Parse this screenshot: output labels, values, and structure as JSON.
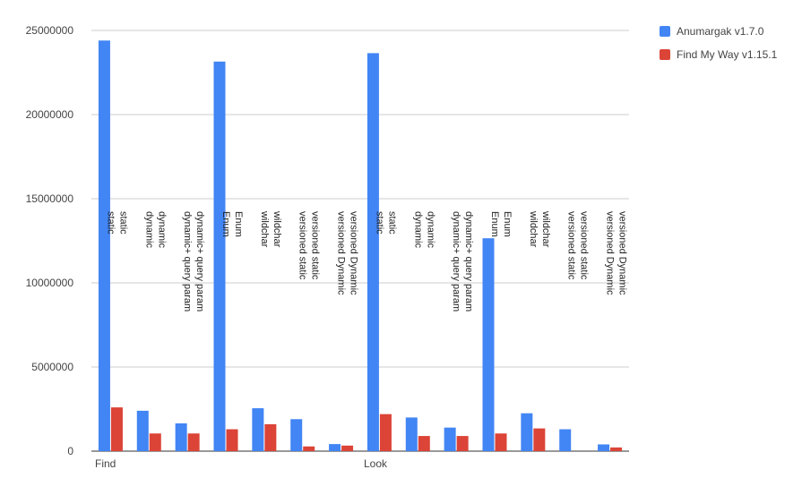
{
  "chart_data": {
    "type": "bar",
    "title": "",
    "xlabel": "",
    "ylabel": "",
    "ylim": [
      0,
      25000000
    ],
    "y_ticks": [
      "0",
      "5000000",
      "10000000",
      "15000000",
      "20000000",
      "25000000"
    ],
    "grid": true,
    "legend_position": "top-right",
    "group_labels": [
      "Find",
      "Look"
    ],
    "categories": [
      "static",
      "dynamic",
      "dynamic+ query param",
      "Enum",
      "wildchar",
      "versioned static",
      "versioned Dynamic",
      "static",
      "dynamic",
      "dynamic+ query param",
      "Enum",
      "wildchar",
      "versioned static",
      "versioned Dynamic"
    ],
    "series": [
      {
        "name": "Anumargak v1.7.0",
        "color": "#4285f4",
        "values": [
          24400000,
          2400000,
          1650000,
          23150000,
          2550000,
          1900000,
          420000,
          23650000,
          2000000,
          1400000,
          12650000,
          2250000,
          1300000,
          400000
        ]
      },
      {
        "name": "Find My Way v1.15.1",
        "color": "#db4437",
        "values": [
          2600000,
          1050000,
          1050000,
          1300000,
          1600000,
          280000,
          330000,
          2200000,
          900000,
          900000,
          1050000,
          1350000,
          0,
          220000
        ]
      }
    ]
  }
}
